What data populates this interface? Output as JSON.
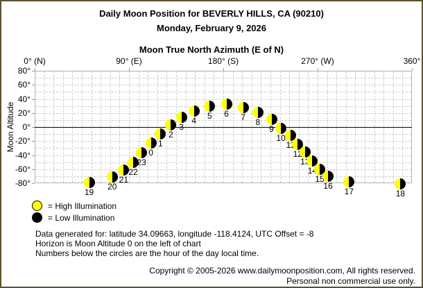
{
  "window": {
    "border_color": "#5c5130",
    "background": "#ffffff"
  },
  "titles": {
    "main": "Daily Moon Position for BEVERLY HILLS, CA (90210)",
    "date": "Monday, February 9, 2026",
    "axis_top": "Moon True North Azimuth (E of N)",
    "y_axis": "Moon Altitude"
  },
  "chart_data": {
    "type": "scatter",
    "title": "Moon True North Azimuth (E of N)",
    "xlabel": "Moon True North Azimuth (E of N)",
    "ylabel": "Moon Altitude",
    "xlim": [
      0,
      360
    ],
    "ylim": [
      -80,
      80
    ],
    "grid": {
      "x_step_deg": 9,
      "y_step_deg": 10,
      "style": "dashed",
      "on": true
    },
    "horizon_altitude": 0,
    "x_ticks": [
      {
        "value": 0,
        "label": "0° (N)"
      },
      {
        "value": 90,
        "label": "90° (E)"
      },
      {
        "value": 180,
        "label": "180° (S)"
      },
      {
        "value": 270,
        "label": "270° (W)"
      },
      {
        "value": 360,
        "label": "360°"
      }
    ],
    "y_ticks": [
      {
        "value": 80,
        "label": "80°"
      },
      {
        "value": 60,
        "label": "60°"
      },
      {
        "value": 40,
        "label": "40°"
      },
      {
        "value": 20,
        "label": "20°"
      },
      {
        "value": 0,
        "label": "0°"
      },
      {
        "value": -20,
        "label": "-20°"
      },
      {
        "value": -40,
        "label": "-40°"
      },
      {
        "value": -60,
        "label": "-60°"
      },
      {
        "value": -80,
        "label": "-80°"
      }
    ],
    "moon_colors": {
      "illuminated": "#ffff00",
      "dark": "#000000"
    },
    "points": [
      {
        "hour": "19",
        "azimuth": 52,
        "altitude": -79
      },
      {
        "hour": "20",
        "azimuth": 74,
        "altitude": -71
      },
      {
        "hour": "21",
        "azimuth": 85,
        "altitude": -61
      },
      {
        "hour": "22",
        "azimuth": 94,
        "altitude": -50
      },
      {
        "hour": "23",
        "azimuth": 102,
        "altitude": -37
      },
      {
        "hour": "0",
        "azimuth": 111,
        "altitude": -23
      },
      {
        "hour": "1",
        "azimuth": 120,
        "altitude": -10
      },
      {
        "hour": "2",
        "azimuth": 130,
        "altitude": 3
      },
      {
        "hour": "3",
        "azimuth": 140,
        "altitude": 14
      },
      {
        "hour": "4",
        "azimuth": 152,
        "altitude": 23
      },
      {
        "hour": "5",
        "azimuth": 167,
        "altitude": 30
      },
      {
        "hour": "6",
        "azimuth": 183,
        "altitude": 33
      },
      {
        "hour": "7",
        "azimuth": 199,
        "altitude": 28
      },
      {
        "hour": "8",
        "azimuth": 213,
        "altitude": 21
      },
      {
        "hour": "9",
        "azimuth": 226,
        "altitude": 11
      },
      {
        "hour": "10",
        "azimuth": 235,
        "altitude": -2
      },
      {
        "hour": "11",
        "azimuth": 244,
        "altitude": -12
      },
      {
        "hour": "12",
        "azimuth": 251,
        "altitude": -25
      },
      {
        "hour": "13",
        "azimuth": 258,
        "altitude": -36
      },
      {
        "hour": "14",
        "azimuth": 265,
        "altitude": -48
      },
      {
        "hour": "15",
        "azimuth": 272,
        "altitude": -60
      },
      {
        "hour": "16",
        "azimuth": 280,
        "altitude": -70
      },
      {
        "hour": "17",
        "azimuth": 300,
        "altitude": -78
      },
      {
        "hour": "18",
        "azimuth": 349,
        "altitude": -81
      }
    ]
  },
  "legend": [
    {
      "id": "high",
      "color": "#ffff00",
      "label": "= High Illumination"
    },
    {
      "id": "low",
      "color": "#000000",
      "label": "= Low Illumination"
    }
  ],
  "info_lines": [
    "Data generated for: latitude 34.09663, longitude -118.4124, UTC Offset = -8",
    "Horizon is Moon Altitude 0 on the left of chart",
    "Numbers below the circles are the hour of the day local time."
  ],
  "footer": {
    "line1": "Copyright © 2005-2026 www.dailymoonposition.com, All rights reserved.",
    "line2": "Personal non commercial use only."
  }
}
